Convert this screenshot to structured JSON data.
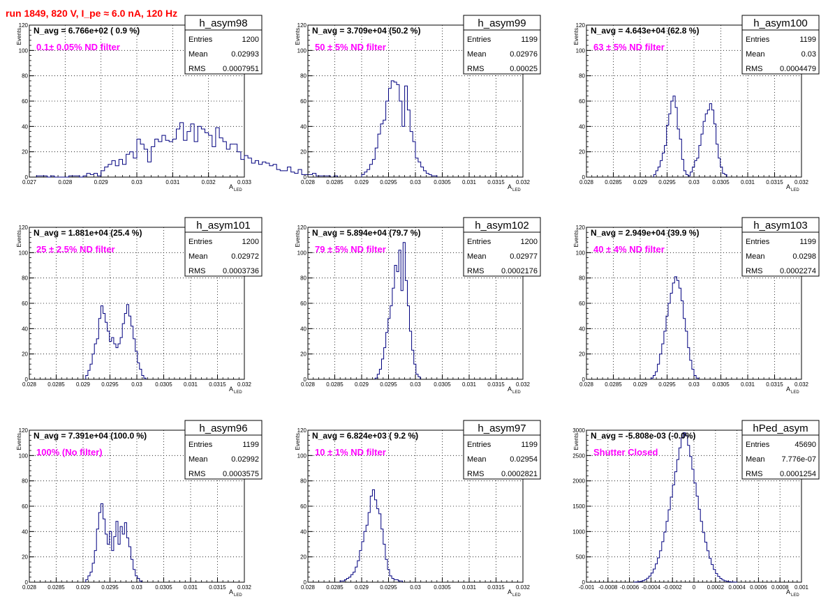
{
  "header": {
    "title": "run 1849,   820 V, I_pe ≈ 6.0 nA, 120 Hz",
    "color": "#ff0000"
  },
  "colors": {
    "hist": "#00007f",
    "annotation": "#ff00ff",
    "grid": "#000000"
  },
  "stat_labels": {
    "entries": "Entries",
    "mean": "Mean",
    "rms": "RMS"
  },
  "ylabel": "Events",
  "xlabel": {
    "main": "A",
    "sub": "LED"
  },
  "chart_data": [
    {
      "type": "bar",
      "hist_name": "h_asym98",
      "navg": "N_avg = 6.766e+02 ( 0.9 %)",
      "filter": "0.1± 0.05% ND filter",
      "entries": "1200",
      "mean": "0.02993",
      "rms": "0.0007951",
      "xlim": [
        0.027,
        0.033
      ],
      "ylim": [
        0,
        120
      ],
      "xticks": [
        "0.027",
        "0.028",
        "0.029",
        "0.03",
        "0.031",
        "0.032",
        "0.033"
      ],
      "yticks": [
        "0",
        "20",
        "40",
        "60",
        "80",
        "100",
        "120"
      ],
      "x_start": 0.0272,
      "bin_width": 0.0001,
      "values": [
        1,
        1,
        1,
        0,
        1,
        0,
        0,
        0,
        0,
        1,
        1,
        1,
        0,
        1,
        3,
        2,
        3,
        1,
        5,
        8,
        10,
        13,
        9,
        14,
        10,
        18,
        20,
        15,
        30,
        26,
        22,
        12,
        24,
        30,
        28,
        33,
        29,
        28,
        30,
        38,
        43,
        29,
        36,
        42,
        28,
        40,
        38,
        35,
        33,
        24,
        39,
        31,
        28,
        22,
        26,
        26,
        20,
        14,
        17,
        15,
        11,
        13,
        10,
        12,
        11,
        9,
        10,
        6,
        5,
        5,
        8,
        4,
        3,
        6,
        2,
        2,
        2,
        3,
        1,
        1,
        1,
        1,
        0,
        1
      ]
    },
    {
      "type": "bar",
      "hist_name": "h_asym99",
      "navg": "N_avg = 3.709e+04 (50.2 %)",
      "filter": "50 ± 5% ND filter",
      "entries": "1199",
      "mean": "0.02976",
      "rms": "0.00025",
      "xlim": [
        0.028,
        0.032
      ],
      "ylim": [
        0,
        120
      ],
      "xticks": [
        "0.028",
        "0.0285",
        "0.029",
        "0.0295",
        "0.03",
        "0.0305",
        "0.031",
        "0.0315",
        "0.032"
      ],
      "yticks": [
        "0",
        "20",
        "40",
        "60",
        "80",
        "100",
        "120"
      ],
      "x_start": 0.029,
      "bin_width": 5e-05,
      "values": [
        2,
        4,
        6,
        10,
        14,
        23,
        34,
        42,
        45,
        60,
        70,
        76,
        75,
        73,
        60,
        40,
        72,
        53,
        36,
        28,
        15,
        12,
        8,
        5,
        3,
        2,
        1,
        1
      ]
    },
    {
      "type": "bar",
      "hist_name": "h_asym100",
      "navg": "N_avg = 4.643e+04 (62.8 %)",
      "filter": "63 ± 5% ND filter",
      "entries": "1199",
      "mean": "0.03",
      "rms": "0.0004479",
      "xlim": [
        0.028,
        0.032
      ],
      "ylim": [
        0,
        120
      ],
      "xticks": [
        "0.028",
        "0.0285",
        "0.029",
        "0.0295",
        "0.03",
        "0.0305",
        "0.031",
        "0.0315",
        "0.032"
      ],
      "yticks": [
        "0",
        "20",
        "40",
        "60",
        "80",
        "100",
        "120"
      ],
      "x_start": 0.02925,
      "bin_width": 4e-05,
      "values": [
        2,
        5,
        8,
        13,
        19,
        25,
        41,
        50,
        60,
        64,
        55,
        38,
        30,
        14,
        5,
        2,
        1,
        4,
        8,
        13,
        15,
        25,
        34,
        44,
        50,
        53,
        58,
        53,
        42,
        26,
        15,
        8,
        3,
        2
      ]
    },
    {
      "type": "bar",
      "hist_name": "h_asym101",
      "navg": "N_avg = 1.881e+04 (25.4 %)",
      "filter": "25 ± 2.5% ND filter",
      "entries": "1200",
      "mean": "0.02972",
      "rms": "0.0003736",
      "xlim": [
        0.028,
        0.032
      ],
      "ylim": [
        0,
        120
      ],
      "xticks": [
        "0.028",
        "0.0285",
        "0.029",
        "0.0295",
        "0.03",
        "0.0305",
        "0.031",
        "0.0315",
        "0.032"
      ],
      "yticks": [
        "0",
        "20",
        "40",
        "60",
        "80",
        "100",
        "120"
      ],
      "x_start": 0.02905,
      "bin_width": 4e-05,
      "values": [
        3,
        7,
        12,
        20,
        28,
        32,
        48,
        58,
        52,
        45,
        38,
        30,
        33,
        28,
        25,
        28,
        33,
        44,
        52,
        59,
        50,
        42,
        32,
        22,
        13,
        8,
        3,
        1
      ]
    },
    {
      "type": "bar",
      "hist_name": "h_asym102",
      "navg": "N_avg = 5.894e+04 (79.7 %)",
      "filter": "79 ± 5% ND filter",
      "entries": "1200",
      "mean": "0.02977",
      "rms": "0.0002176",
      "xlim": [
        0.028,
        0.032
      ],
      "ylim": [
        0,
        120
      ],
      "xticks": [
        "0.028",
        "0.0285",
        "0.029",
        "0.0295",
        "0.03",
        "0.0305",
        "0.031",
        "0.0315",
        "0.032"
      ],
      "yticks": [
        "0",
        "20",
        "40",
        "60",
        "80",
        "100",
        "120"
      ],
      "x_start": 0.02925,
      "bin_width": 4e-05,
      "values": [
        1,
        4,
        8,
        16,
        25,
        37,
        48,
        58,
        72,
        90,
        85,
        102,
        70,
        108,
        78,
        58,
        38,
        23,
        12,
        4,
        2
      ]
    },
    {
      "type": "bar",
      "hist_name": "h_asym103",
      "navg": "N_avg = 2.949e+04 (39.9 %)",
      "filter": "40 ± 4% ND filter",
      "entries": "1199",
      "mean": "0.0298",
      "rms": "0.0002274",
      "xlim": [
        0.028,
        0.032
      ],
      "ylim": [
        0,
        120
      ],
      "xticks": [
        "0.028",
        "0.0285",
        "0.029",
        "0.0295",
        "0.03",
        "0.0305",
        "0.031",
        "0.0315",
        "0.032"
      ],
      "yticks": [
        "0",
        "20",
        "40",
        "60",
        "80",
        "100",
        "120"
      ],
      "x_start": 0.0292,
      "bin_width": 4e-05,
      "values": [
        1,
        3,
        6,
        12,
        20,
        28,
        38,
        50,
        60,
        68,
        76,
        81,
        78,
        72,
        62,
        48,
        38,
        25,
        15,
        8,
        3,
        1
      ]
    },
    {
      "type": "bar",
      "hist_name": "h_asym96",
      "navg": "N_avg = 7.391e+04 (100.0 %)",
      "filter": "100% (No filter)",
      "entries": "1199",
      "mean": "0.02992",
      "rms": "0.0003575",
      "xlim": [
        0.028,
        0.032
      ],
      "ylim": [
        0,
        120
      ],
      "xticks": [
        "0.028",
        "0.0285",
        "0.029",
        "0.0295",
        "0.03",
        "0.0305",
        "0.031",
        "0.0315",
        "0.032"
      ],
      "yticks": [
        "0",
        "20",
        "40",
        "60",
        "80",
        "100",
        "120"
      ],
      "x_start": 0.02905,
      "bin_width": 4e-05,
      "values": [
        2,
        5,
        8,
        15,
        25,
        42,
        55,
        62,
        50,
        38,
        30,
        40,
        25,
        36,
        48,
        30,
        44,
        38,
        47,
        35,
        28,
        18,
        10,
        5,
        3,
        1
      ]
    },
    {
      "type": "bar",
      "hist_name": "h_asym97",
      "navg": "N_avg = 6.824e+03 ( 9.2 %)",
      "filter": "10 ± 1% ND filter",
      "entries": "1199",
      "mean": "0.02954",
      "rms": "0.0002821",
      "xlim": [
        0.028,
        0.032
      ],
      "ylim": [
        0,
        120
      ],
      "xticks": [
        "0.028",
        "0.0285",
        "0.029",
        "0.0295",
        "0.03",
        "0.0305",
        "0.031",
        "0.0315",
        "0.032"
      ],
      "yticks": [
        "0",
        "20",
        "40",
        "60",
        "80",
        "100",
        "120"
      ],
      "x_start": 0.0286,
      "bin_width": 4e-05,
      "values": [
        1,
        1,
        2,
        3,
        4,
        6,
        8,
        12,
        17,
        25,
        32,
        40,
        45,
        55,
        68,
        73,
        65,
        58,
        54,
        42,
        30,
        18,
        10,
        5,
        3,
        2,
        2,
        1,
        1
      ]
    },
    {
      "type": "bar",
      "hist_name": "hPed_asym",
      "navg": "N_avg = -5.808e-03 (-0.0%)",
      "filter": "Shutter Closed",
      "entries": "45690",
      "mean": "7.776e-07",
      "rms": "0.0001254",
      "xlim": [
        -0.001,
        0.001
      ],
      "ylim": [
        0,
        3000
      ],
      "xticks": [
        "-0.001",
        "-0.0008",
        "-0.0006",
        "-0.0004",
        "-0.0002",
        "0",
        "0.0002",
        "0.0004",
        "0.0006",
        "0.0008",
        "0.001"
      ],
      "yticks": [
        "0",
        "500",
        "1000",
        "1500",
        "2000",
        "2500",
        "3000"
      ],
      "x_start": -0.00056,
      "bin_width": 2e-05,
      "values": [
        2,
        5,
        10,
        18,
        30,
        50,
        80,
        120,
        180,
        260,
        360,
        480,
        620,
        800,
        990,
        1200,
        1430,
        1680,
        1920,
        2180,
        2420,
        2650,
        2850,
        2950,
        2890,
        2700,
        2480,
        2230,
        1960,
        1700,
        1440,
        1200,
        980,
        790,
        620,
        470,
        350,
        250,
        170,
        115,
        75,
        45,
        28,
        16,
        9,
        5,
        3,
        1
      ]
    }
  ]
}
